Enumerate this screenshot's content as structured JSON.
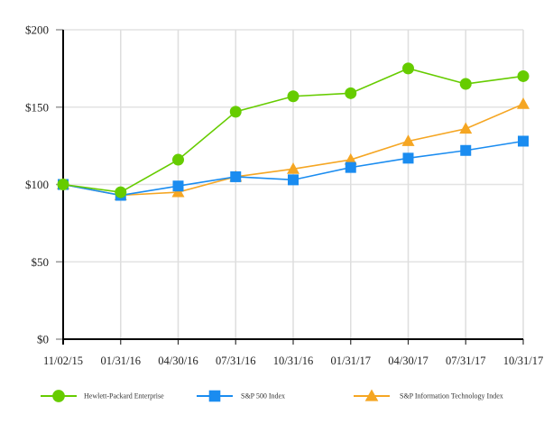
{
  "chart_data": {
    "type": "line",
    "title": "",
    "xlabel": "",
    "ylabel": "",
    "categories": [
      "11/02/15",
      "01/31/16",
      "04/30/16",
      "07/31/16",
      "10/31/16",
      "01/31/17",
      "04/30/17",
      "07/31/17",
      "10/31/17"
    ],
    "y_ticks": [
      0,
      50,
      100,
      150,
      200
    ],
    "y_tick_labels": [
      "$0",
      "$50",
      "$100",
      "$150",
      "$200"
    ],
    "ylim": [
      0,
      200
    ],
    "grid": true,
    "legend_position": "bottom",
    "series": [
      {
        "name": "Hewlett-Packard Enterprise",
        "marker": "circle",
        "color": "#66cc00",
        "values": [
          100,
          95,
          116,
          147,
          157,
          159,
          175,
          165,
          170
        ]
      },
      {
        "name": "S&P 500 Index",
        "marker": "square",
        "color": "#1a8cf0",
        "values": [
          100,
          93,
          99,
          105,
          103,
          111,
          117,
          122,
          128
        ]
      },
      {
        "name": "S&P Information Technology Index",
        "marker": "triangle",
        "color": "#f5a623",
        "values": [
          100,
          93,
          95,
          105,
          110,
          116,
          128,
          136,
          152
        ]
      }
    ]
  },
  "legend": {
    "items": [
      {
        "label": "Hewlett-Packard Enterprise"
      },
      {
        "label": "S&P 500 Index"
      },
      {
        "label": "S&P Information Technology Index"
      }
    ]
  }
}
